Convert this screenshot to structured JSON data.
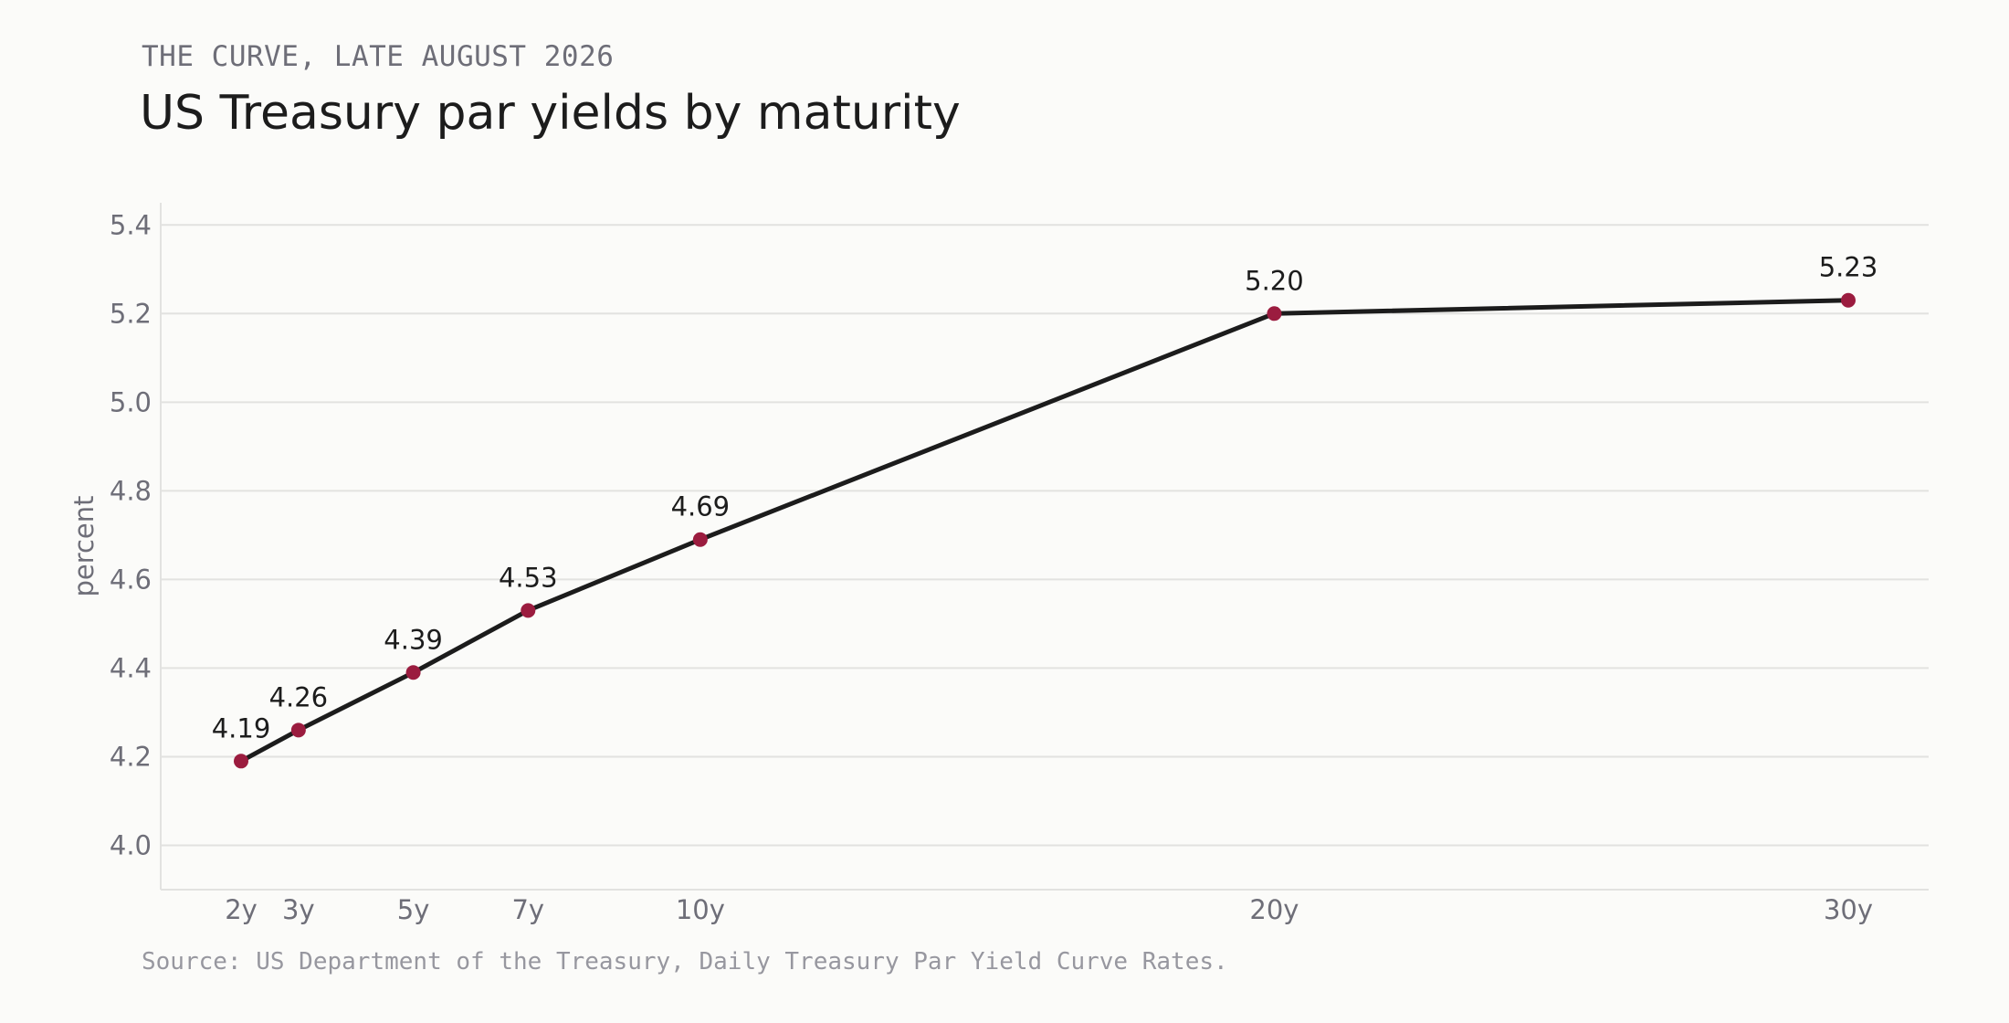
{
  "kicker": "THE CURVE, LATE AUGUST 2026",
  "title": "US Treasury par yields by maturity",
  "source": "Source: US Department of the Treasury, Daily Treasury Par Yield Curve Rates.",
  "colors": {
    "line": "#1c1c1c",
    "point": "#9b1c3f",
    "grid": "#e2e2e0",
    "text": "#6e6e78"
  },
  "chart_data": {
    "type": "line",
    "title": "US Treasury par yields by maturity",
    "subtitle": "THE CURVE, LATE AUGUST 2026",
    "xlabel": "",
    "ylabel": "percent",
    "x": [
      2,
      3,
      5,
      7,
      10,
      20,
      30
    ],
    "x_tick_labels": [
      "2y",
      "3y",
      "5y",
      "7y",
      "10y",
      "20y",
      "30y"
    ],
    "values": [
      4.19,
      4.26,
      4.39,
      4.53,
      4.69,
      5.2,
      5.23
    ],
    "data_labels": [
      "4.19",
      "4.26",
      "4.39",
      "4.53",
      "4.69",
      "5.20",
      "5.23"
    ],
    "xlim": [
      0.6,
      31.4
    ],
    "ylim": [
      3.9,
      5.45
    ],
    "y_ticks": [
      "4.0",
      "4.2",
      "4.4",
      "4.6",
      "4.8",
      "5.0",
      "5.2",
      "5.4"
    ],
    "grid": "horizontal",
    "legend": "none"
  }
}
